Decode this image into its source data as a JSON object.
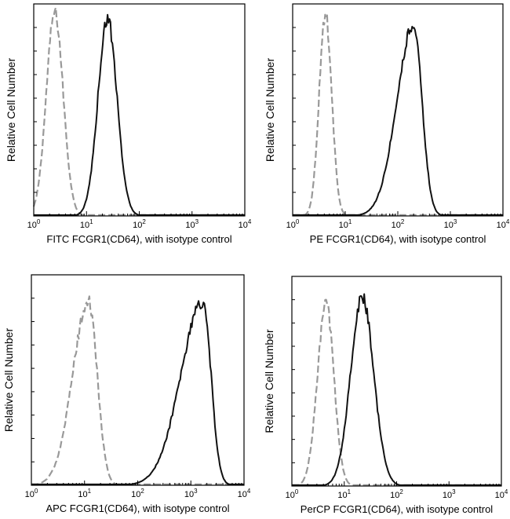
{
  "chart_data": [
    {
      "type": "line",
      "ylabel": "Relative Cell Number",
      "xlabel": "FITC  FCGR1(CD64),  with isotype control",
      "x_scale": "log",
      "xlim": [
        1,
        10000
      ],
      "xticks": [
        {
          "base": "10",
          "exp": "0"
        },
        {
          "base": "10",
          "exp": "1"
        },
        {
          "base": "10",
          "exp": "2"
        },
        {
          "base": "10",
          "exp": "3"
        },
        {
          "base": "10",
          "exp": "4"
        }
      ],
      "grid": false,
      "legend": "none",
      "series": [
        {
          "role": "isotype control",
          "style": "dashed",
          "color": "#999999",
          "peak": 2.5,
          "width": 0.16,
          "skew_left": 1.0,
          "height": 0.96
        },
        {
          "role": "stained",
          "style": "solid",
          "color": "#111111",
          "peak": 25,
          "width": 0.18,
          "skew_left": 1.0,
          "height": 0.93
        }
      ]
    },
    {
      "type": "line",
      "ylabel": "Relative Cell Number",
      "xlabel": "PE  FCGR1(CD64),  with isotype control",
      "x_scale": "log",
      "xlim": [
        1,
        10000
      ],
      "xticks": [
        {
          "base": "10",
          "exp": "0"
        },
        {
          "base": "10",
          "exp": "1"
        },
        {
          "base": "10",
          "exp": "2"
        },
        {
          "base": "10",
          "exp": "3"
        },
        {
          "base": "10",
          "exp": "4"
        }
      ],
      "grid": false,
      "legend": "none",
      "series": [
        {
          "role": "isotype control",
          "style": "dashed",
          "color": "#999999",
          "peak": 4.2,
          "width": 0.12,
          "skew_left": 1.0,
          "height": 0.95
        },
        {
          "role": "stained",
          "style": "solid",
          "color": "#111111",
          "peak": 200,
          "width": 0.16,
          "skew_left": 2.0,
          "height": 0.9
        }
      ]
    },
    {
      "type": "line",
      "ylabel": "Relative Cell Number",
      "xlabel": "APC FCGR1(CD64), with isotype control",
      "x_scale": "log",
      "xlim": [
        1,
        10000
      ],
      "xticks": [
        {
          "base": "10",
          "exp": "0"
        },
        {
          "base": "10",
          "exp": "1"
        },
        {
          "base": "10",
          "exp": "2"
        },
        {
          "base": "10",
          "exp": "3"
        },
        {
          "base": "10",
          "exp": "4"
        }
      ],
      "grid": false,
      "legend": "none",
      "series": [
        {
          "role": "isotype control",
          "style": "dashed",
          "color": "#999999",
          "peak": 12,
          "width": 0.16,
          "skew_left": 1.9,
          "height": 0.87
        },
        {
          "role": "stained",
          "style": "solid",
          "color": "#111111",
          "peak": 1700,
          "width": 0.15,
          "skew_left": 2.8,
          "height": 0.87
        }
      ]
    },
    {
      "type": "line",
      "ylabel": "Relative Cell Number",
      "xlabel": "PerCP FCGR1(CD64), with isotype control",
      "x_scale": "log",
      "xlim": [
        1,
        10000
      ],
      "xticks": [
        {
          "base": "10",
          "exp": "0"
        },
        {
          "base": "10",
          "exp": "1"
        },
        {
          "base": "10",
          "exp": "2"
        },
        {
          "base": "10",
          "exp": "3"
        },
        {
          "base": "10",
          "exp": "4"
        }
      ],
      "grid": false,
      "legend": "none",
      "series": [
        {
          "role": "isotype control",
          "style": "dashed",
          "color": "#999999",
          "peak": 4.5,
          "width": 0.15,
          "skew_left": 1.1,
          "height": 0.87
        },
        {
          "role": "stained",
          "style": "solid",
          "color": "#111111",
          "peak": 22,
          "width": 0.22,
          "skew_left": 1.0,
          "height": 0.9
        }
      ]
    }
  ]
}
